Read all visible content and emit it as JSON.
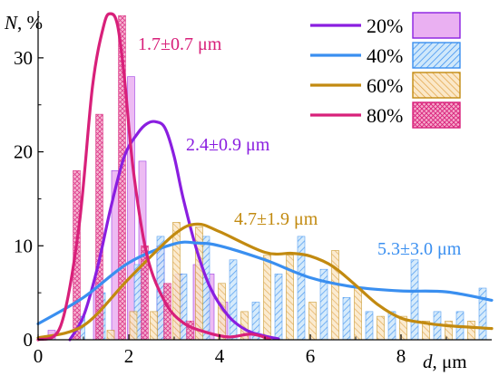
{
  "chart_data": {
    "type": "bar",
    "title": "",
    "xlabel": "d, μm",
    "ylabel": "N, %",
    "xlim": [
      0,
      10
    ],
    "ylim": [
      0,
      35
    ],
    "x_ticks": [
      0,
      2,
      4,
      6,
      8
    ],
    "y_ticks": [
      0,
      10,
      20,
      30
    ],
    "grid": false,
    "legend_position": "top-right",
    "series": [
      {
        "name": "20%",
        "color": "#8a1ee0",
        "fill": "#eab0f2",
        "bar_style": "solid",
        "bars": {
          "x": [
            0.3,
            1.3,
            1.7,
            2.05,
            2.3,
            2.7,
            3.1,
            3.5,
            3.8,
            4.1,
            4.6
          ],
          "y": [
            1,
            6,
            18,
            28,
            19,
            10,
            7,
            8,
            7,
            4,
            1
          ]
        },
        "curve": {
          "x": [
            0.7,
            1.0,
            1.3,
            1.6,
            1.9,
            2.2,
            2.4,
            2.6,
            2.8,
            3.0,
            3.2,
            3.5,
            3.8,
            4.2,
            4.6,
            5.0,
            5.3
          ],
          "y": [
            0,
            2.5,
            7.5,
            14,
            19.5,
            22,
            23,
            23.2,
            22.5,
            19.5,
            15,
            9.5,
            5.5,
            2.5,
            1,
            0.4,
            0.1
          ]
        },
        "label": "2.4±0.9 μm"
      },
      {
        "name": "40%",
        "color": "#3a8ff0",
        "fill": "#a9d7f7",
        "bar_style": "hatched",
        "bars": {
          "x": [
            0.95,
            1.4,
            2.2,
            2.7,
            3.2,
            3.7,
            4.3,
            4.8,
            5.3,
            5.8,
            6.3,
            6.8,
            7.3,
            7.8,
            8.3,
            8.8,
            9.3,
            9.8
          ],
          "y": [
            2.5,
            5,
            8,
            11,
            7,
            11,
            8.5,
            4,
            7,
            11,
            7.5,
            4.5,
            3,
            3,
            8.5,
            3,
            3,
            5.5
          ]
        },
        "curve": {
          "x": [
            0,
            1,
            2,
            3,
            3.5,
            4,
            5,
            6,
            7,
            8,
            9,
            10
          ],
          "y": [
            1.7,
            4.5,
            8.2,
            10.2,
            10.3,
            10,
            8.5,
            6.6,
            5.6,
            5.2,
            5.1,
            4.2
          ]
        },
        "label": "5.3±3.0 μm"
      },
      {
        "name": "60%",
        "color": "#c28a10",
        "fill": "#f6d9a6",
        "bar_style": "hatched",
        "bars": {
          "x": [
            1.6,
            2.1,
            2.55,
            3.05,
            3.55,
            4.05,
            4.55,
            5.05,
            5.55,
            6.05,
            6.55,
            7.05,
            7.55,
            8.05,
            8.55,
            9.05,
            9.55
          ],
          "y": [
            1,
            3,
            3,
            12.5,
            12,
            6,
            3,
            9,
            9,
            4,
            9.5,
            5.5,
            2.5,
            2.5,
            2,
            2,
            2
          ]
        },
        "curve": {
          "x": [
            0,
            1,
            2,
            3,
            3.5,
            4,
            5,
            5.6,
            6,
            6.5,
            7,
            7.5,
            8,
            8.5,
            9,
            10
          ],
          "y": [
            0.2,
            1.5,
            6.5,
            11.2,
            12.3,
            11.5,
            9.3,
            9.2,
            8.9,
            7.8,
            5.8,
            3.7,
            2.3,
            1.8,
            1.5,
            1.2
          ]
        },
        "label": "4.7±1.9 μm"
      },
      {
        "name": "80%",
        "color": "#d8207a",
        "fill": "#f08ab8",
        "bar_style": "crosshatch",
        "bars": {
          "x": [
            0.85,
            1.35,
            1.85,
            2.35,
            2.85,
            3.35
          ],
          "y": [
            18,
            24,
            34.5,
            10,
            6,
            2
          ]
        },
        "curve": {
          "x": [
            0,
            0.5,
            0.9,
            1.2,
            1.45,
            1.6,
            1.75,
            1.9,
            2.1,
            2.4,
            2.8,
            3.2,
            3.7,
            4.2,
            4.7,
            5.1
          ],
          "y": [
            0,
            1.5,
            12,
            27,
            33.5,
            34.7,
            33.5,
            28,
            18,
            9,
            4,
            1.8,
            0.8,
            0.3,
            0.6,
            0.1
          ]
        },
        "label": "1.7±0.7 μm"
      }
    ]
  }
}
